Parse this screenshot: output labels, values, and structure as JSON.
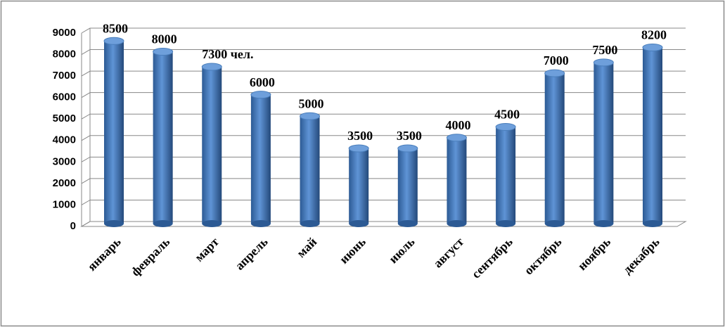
{
  "chart_data": {
    "type": "bar",
    "categories": [
      "январь",
      "февраль",
      "март",
      "апрель",
      "май",
      "июнь",
      "июль",
      "август",
      "сентябрь",
      "октябрь",
      "ноябрь",
      "декабрь"
    ],
    "values": [
      8500,
      8000,
      7300,
      6000,
      5000,
      3500,
      3500,
      4000,
      4500,
      7000,
      7500,
      8200
    ],
    "value_labels": [
      "8500",
      "8000",
      "7300 чел.",
      "6000",
      "5000",
      "3500",
      "3500",
      "4000",
      "4500",
      "7000",
      "7500",
      "8200"
    ],
    "color": "#4a7ebb",
    "ylim": [
      0,
      9000
    ],
    "yticks": [
      0,
      1000,
      2000,
      3000,
      4000,
      5000,
      6000,
      7000,
      8000,
      9000
    ],
    "grid": true
  }
}
